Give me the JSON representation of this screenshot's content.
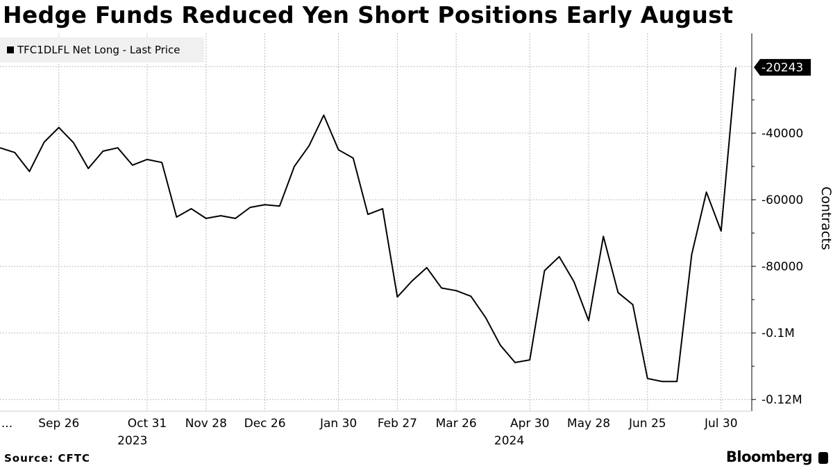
{
  "title": "Hedge Funds Reduced Yen Short Positions Early August",
  "legend": "TFC1DLFL Net Long - Last Price",
  "source": "Source: CFTC",
  "brand": "Bloomberg",
  "chart_data": {
    "type": "line",
    "title": "Hedge Funds Reduced Yen Short Positions Early August",
    "ylabel": "Contracts",
    "series": [
      {
        "name": "TFC1DLFL Net Long - Last Price",
        "color": "#000000",
        "values": [
          -44400,
          -45800,
          -51500,
          -42700,
          -38300,
          -42900,
          -50600,
          -45400,
          -44400,
          -49600,
          -47900,
          -48800,
          -65200,
          -62700,
          -65600,
          -64800,
          -65600,
          -62300,
          -61500,
          -61900,
          -50000,
          -43800,
          -34600,
          -45000,
          -47500,
          -64400,
          -62700,
          -89200,
          -84400,
          -80400,
          -86500,
          -87300,
          -89000,
          -95400,
          -103700,
          -108900,
          -108100,
          -81300,
          -77100,
          -84600,
          -96300,
          -71000,
          -87900,
          -91500,
          -113700,
          -114600,
          -114600,
          -76500,
          -57700,
          -69400,
          -20243
        ]
      }
    ],
    "x_unit": "weekly observations, index 0..50",
    "xticks": [
      {
        "i": 0.85,
        "label": "..."
      },
      {
        "i": 4,
        "label": "Sep 26"
      },
      {
        "i": 10,
        "label": "Oct 31"
      },
      {
        "i": 14,
        "label": "Nov 28"
      },
      {
        "i": 18,
        "label": "Dec 26"
      },
      {
        "i": 23,
        "label": "Jan 30"
      },
      {
        "i": 27,
        "label": "Feb 27"
      },
      {
        "i": 31,
        "label": "Mar 26"
      },
      {
        "i": 36,
        "label": "Apr 30"
      },
      {
        "i": 40,
        "label": "May 28"
      },
      {
        "i": 44,
        "label": "Jun 25"
      },
      {
        "i": 49,
        "label": "Jul 30"
      }
    ],
    "year_labels": [
      {
        "i": 9,
        "label": "2023"
      },
      {
        "i": 34.6,
        "label": "2024"
      }
    ],
    "yticks": [
      {
        "v": -40000,
        "label": "-40000"
      },
      {
        "v": -60000,
        "label": "-60000"
      },
      {
        "v": -80000,
        "label": "-80000"
      },
      {
        "v": -100000,
        "label": "-0.1M"
      },
      {
        "v": -120000,
        "label": "-0.12M"
      }
    ],
    "last_value_label": "-20243",
    "ylim": [
      -123500,
      -10000
    ],
    "grid": true,
    "legend_position": "top-left"
  }
}
